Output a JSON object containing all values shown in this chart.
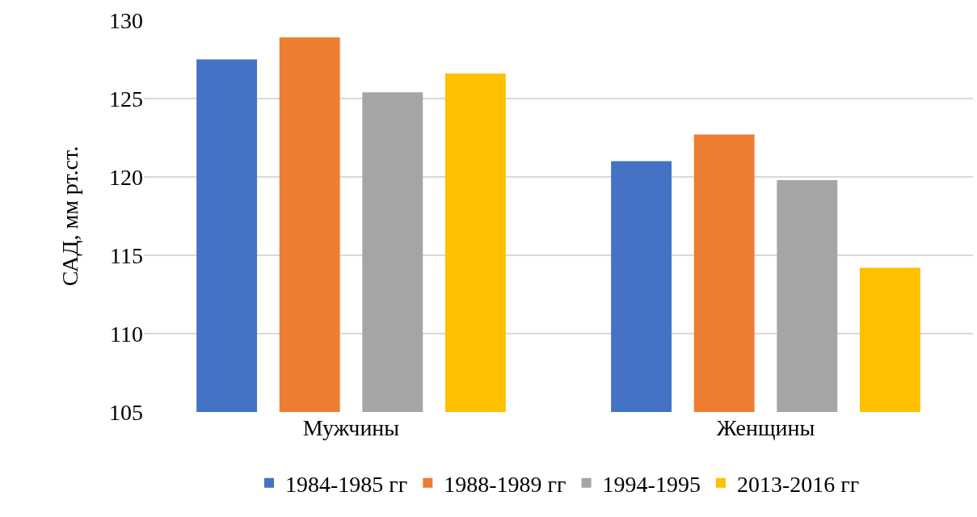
{
  "chart_data": {
    "type": "bar",
    "ylabel": "САД, мм рт.ст.",
    "categories": [
      "Мужчины",
      "Женщины"
    ],
    "series": [
      {
        "name": "1984-1985 гг",
        "color": "#4472c4",
        "values": [
          127.5,
          121.0
        ]
      },
      {
        "name": "1988-1989 гг",
        "color": "#ed7d31",
        "values": [
          128.9,
          122.7
        ]
      },
      {
        "name": "1994-1995",
        "color": "#a5a5a5",
        "values": [
          125.4,
          119.8
        ]
      },
      {
        "name": "2013-2016 гг",
        "color": "#ffc000",
        "values": [
          126.6,
          114.2
        ]
      }
    ],
    "ylim": [
      105,
      130
    ],
    "yticks": [
      105,
      110,
      115,
      120,
      125,
      130
    ],
    "grid": "y",
    "legend": "bottom"
  }
}
